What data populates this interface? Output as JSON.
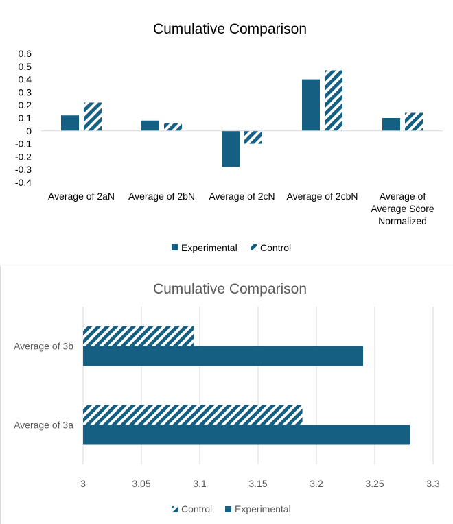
{
  "colors": {
    "series": "#155f82",
    "hatch_bg": "#ffffff",
    "grid": "#d9d9d9",
    "axis_text": "#595959"
  },
  "chart_data": [
    {
      "type": "bar",
      "title": "Cumulative Comparison",
      "categories": [
        [
          "Average of 2aN"
        ],
        [
          "Average of 2bN"
        ],
        [
          "Average of 2cN"
        ],
        [
          "Average of 2cbN"
        ],
        [
          "Average of",
          "Average Score",
          "Normalized"
        ]
      ],
      "series": [
        {
          "name": "Experimental",
          "pattern": "solid",
          "values": [
            0.12,
            0.08,
            -0.28,
            0.4,
            0.1
          ]
        },
        {
          "name": "Control",
          "pattern": "hatch",
          "values": [
            0.22,
            0.06,
            -0.1,
            0.47,
            0.14
          ]
        }
      ],
      "ylim": [
        -0.4,
        0.6
      ],
      "yticks": [
        "0.6",
        "0.5",
        "0.4",
        "0.3",
        "0.2",
        "0.1",
        "0",
        "-0.1",
        "-0.2",
        "-0.3",
        "-0.4"
      ],
      "grid": false,
      "legend": "bottom"
    },
    {
      "type": "bar",
      "orientation": "horizontal",
      "title": "Cumulative Comparison",
      "categories": [
        "Average of 3b",
        "Average of 3a"
      ],
      "series": [
        {
          "name": "Control",
          "pattern": "hatch",
          "values": [
            3.095,
            3.188
          ]
        },
        {
          "name": "Experimental",
          "pattern": "solid",
          "values": [
            3.24,
            3.28
          ]
        }
      ],
      "xlim": [
        3,
        3.3
      ],
      "xticks": [
        "3",
        "3.05",
        "3.1",
        "3.15",
        "3.2",
        "3.25",
        "3.3"
      ],
      "grid": true,
      "legend": "bottom"
    }
  ]
}
